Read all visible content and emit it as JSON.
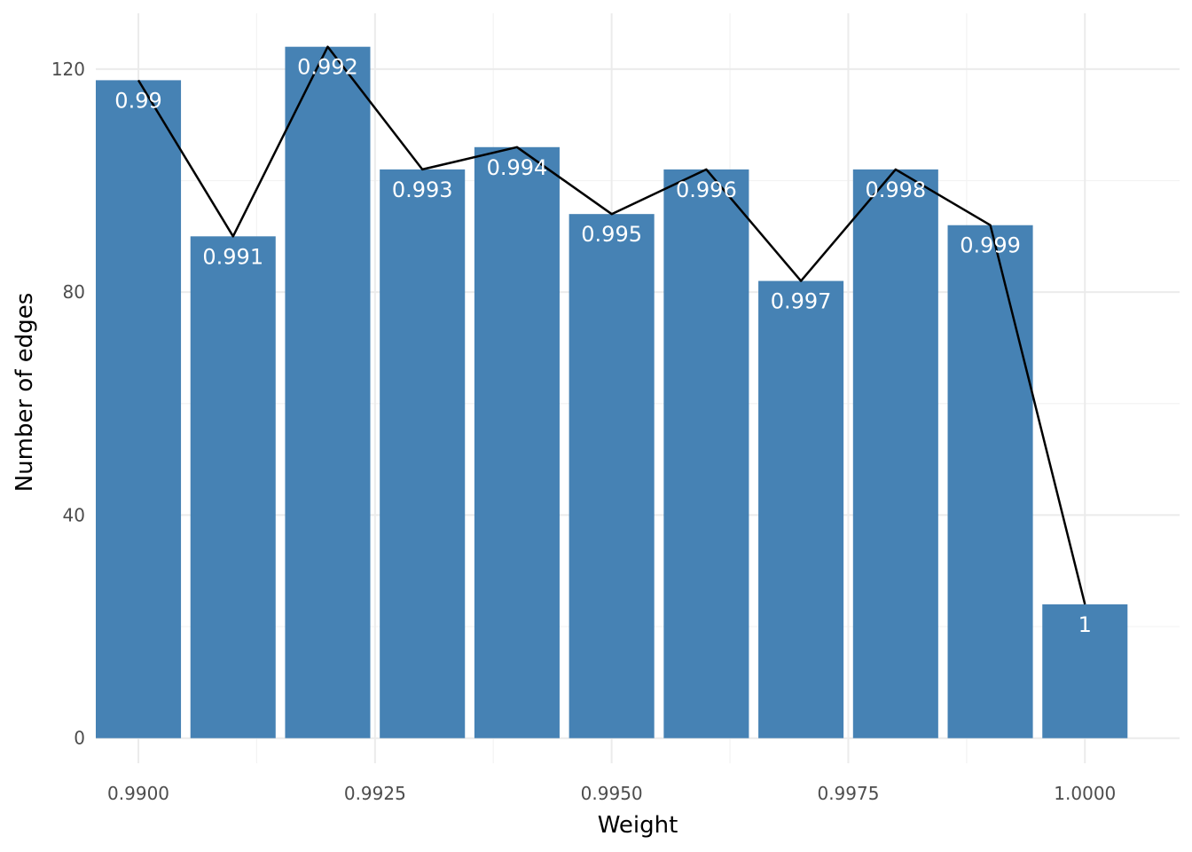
{
  "chart_data": {
    "type": "bar",
    "xlabel": "Weight",
    "ylabel": "Number of edges",
    "x": [
      0.99,
      0.991,
      0.992,
      0.993,
      0.994,
      0.995,
      0.996,
      0.997,
      0.998,
      0.999,
      1.0
    ],
    "values": [
      118,
      90,
      124,
      102,
      106,
      94,
      102,
      82,
      102,
      92,
      24
    ],
    "bar_labels": [
      "0.99",
      "0.991",
      "0.992",
      "0.993",
      "0.994",
      "0.995",
      "0.996",
      "0.997",
      "0.998",
      "0.999",
      "1"
    ],
    "line_values": [
      118,
      90,
      124,
      102,
      106,
      94,
      102,
      82,
      102,
      92,
      24
    ],
    "x_ticks": [
      0.99,
      0.9925,
      0.995,
      0.9975,
      1.0
    ],
    "x_tick_labels": [
      "0.9900",
      "0.9925",
      "0.9950",
      "0.9975",
      "1.0000"
    ],
    "y_ticks": [
      0,
      40,
      80,
      120
    ],
    "y_tick_labels": [
      "0",
      "40",
      "80",
      "120"
    ],
    "xlim": [
      0.98955,
      1.001
    ],
    "ylim": [
      -4.5,
      130
    ],
    "grid": true,
    "legend": "none",
    "colors": {
      "bar": "#4682B4",
      "line": "#000000",
      "label": "#ffffff"
    }
  }
}
